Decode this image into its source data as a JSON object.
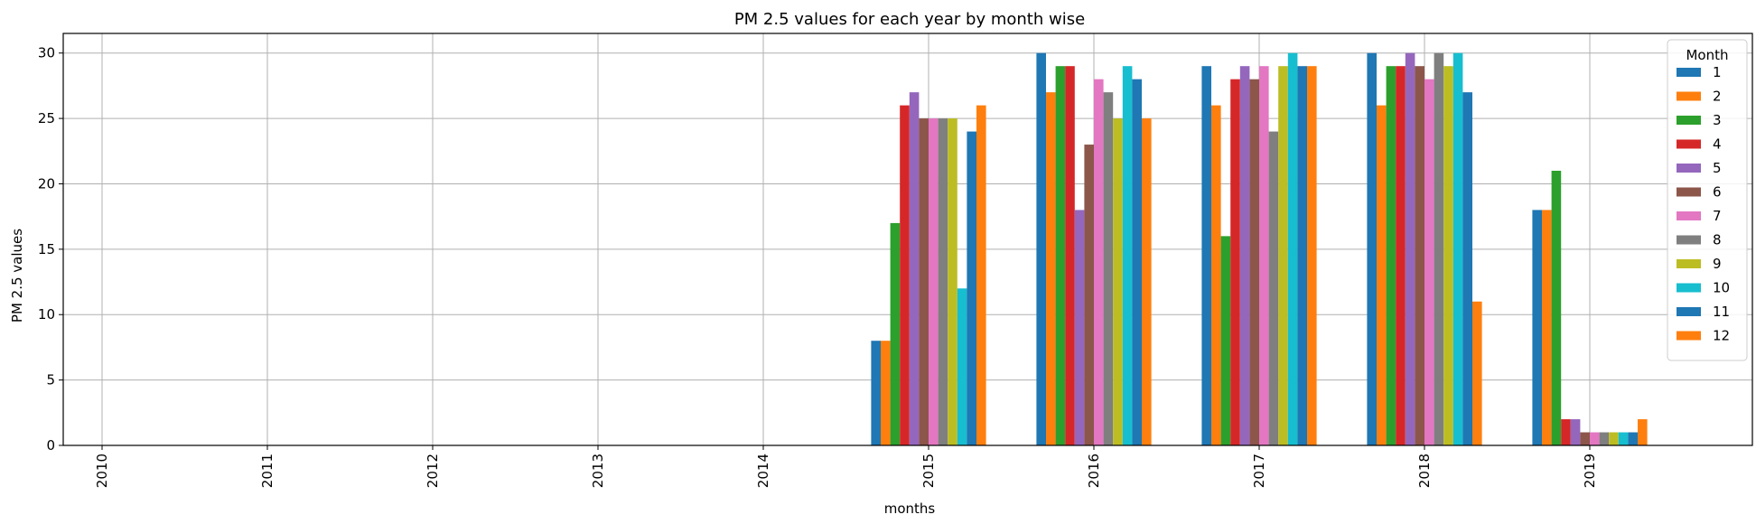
{
  "chart_data": {
    "type": "bar",
    "title": "PM 2.5 values for each year by month wise",
    "xlabel": "months",
    "ylabel": "PM 2.5 values",
    "categories": [
      "2010",
      "2011",
      "2012",
      "2013",
      "2014",
      "2015",
      "2016",
      "2017",
      "2018",
      "2019"
    ],
    "ylim": [
      0,
      31.5
    ],
    "yticks": [
      0,
      5,
      10,
      15,
      20,
      25,
      30
    ],
    "grid": true,
    "legend": {
      "title": "Month",
      "placement": "top-right"
    },
    "series": [
      {
        "name": "1",
        "color": "#1f77b4",
        "values": [
          0,
          0,
          0,
          0,
          0,
          8,
          30,
          29,
          30,
          18
        ]
      },
      {
        "name": "2",
        "color": "#ff7f0e",
        "values": [
          0,
          0,
          0,
          0,
          0,
          8,
          27,
          26,
          26,
          18
        ]
      },
      {
        "name": "3",
        "color": "#2ca02c",
        "values": [
          0,
          0,
          0,
          0,
          0,
          17,
          29,
          16,
          29,
          21
        ]
      },
      {
        "name": "4",
        "color": "#d62728",
        "values": [
          0,
          0,
          0,
          0,
          0,
          26,
          29,
          28,
          29,
          2
        ]
      },
      {
        "name": "5",
        "color": "#9467bd",
        "values": [
          0,
          0,
          0,
          0,
          0,
          27,
          18,
          29,
          30,
          2
        ]
      },
      {
        "name": "6",
        "color": "#8c564b",
        "values": [
          0,
          0,
          0,
          0,
          0,
          25,
          23,
          28,
          29,
          1
        ]
      },
      {
        "name": "7",
        "color": "#e377c2",
        "values": [
          0,
          0,
          0,
          0,
          0,
          25,
          28,
          29,
          28,
          1
        ]
      },
      {
        "name": "8",
        "color": "#7f7f7f",
        "values": [
          0,
          0,
          0,
          0,
          0,
          25,
          27,
          24,
          30,
          1
        ]
      },
      {
        "name": "9",
        "color": "#bcbd22",
        "values": [
          0,
          0,
          0,
          0,
          0,
          25,
          25,
          29,
          29,
          1
        ]
      },
      {
        "name": "10",
        "color": "#17becf",
        "values": [
          0,
          0,
          0,
          0,
          0,
          12,
          29,
          30,
          30,
          1
        ]
      },
      {
        "name": "11",
        "color": "#1f77b4",
        "values": [
          0,
          0,
          0,
          0,
          0,
          24,
          28,
          29,
          27,
          1
        ]
      },
      {
        "name": "12",
        "color": "#ff7f0e",
        "values": [
          0,
          0,
          0,
          0,
          0,
          26,
          25,
          29,
          11,
          2
        ]
      }
    ]
  }
}
